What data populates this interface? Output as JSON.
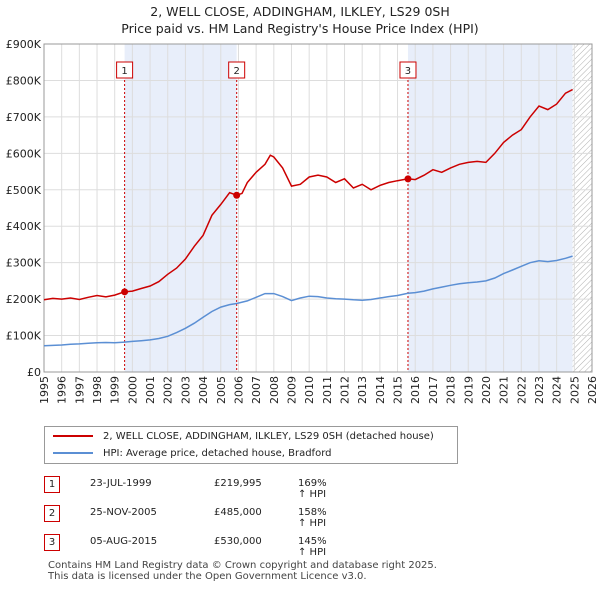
{
  "title_line1": "2, WELL CLOSE, ADDINGHAM, ILKLEY, LS29 0SH",
  "title_line2": "Price paid vs. HM Land Registry's House Price Index (HPI)",
  "chart_data": {
    "type": "line",
    "title": "2, WELL CLOSE, ADDINGHAM, ILKLEY, LS29 0SH — Price paid vs. HM Land Registry's House Price Index (HPI)",
    "xlim": [
      1995,
      2026
    ],
    "ylim": [
      0,
      900000
    ],
    "x_ticks": [
      "1995",
      "1996",
      "1997",
      "1998",
      "1999",
      "2000",
      "2001",
      "2002",
      "2003",
      "2004",
      "2005",
      "2006",
      "2007",
      "2008",
      "2009",
      "2010",
      "2011",
      "2012",
      "2013",
      "2014",
      "2015",
      "2016",
      "2017",
      "2018",
      "2019",
      "2020",
      "2021",
      "2022",
      "2023",
      "2024",
      "2025",
      "2026"
    ],
    "y_ticks": [
      {
        "value": 0,
        "label": "£0"
      },
      {
        "value": 100000,
        "label": "£100K"
      },
      {
        "value": 200000,
        "label": "£200K"
      },
      {
        "value": 300000,
        "label": "£300K"
      },
      {
        "value": 400000,
        "label": "£400K"
      },
      {
        "value": 500000,
        "label": "£500K"
      },
      {
        "value": 600000,
        "label": "£600K"
      },
      {
        "value": 700000,
        "label": "£700K"
      },
      {
        "value": 800000,
        "label": "£800K"
      },
      {
        "value": 900000,
        "label": "£900K"
      }
    ],
    "shaded_periods": [
      [
        1999.56,
        2005.9
      ],
      [
        2015.59,
        2024.9
      ]
    ],
    "hatched_after": 2024.9,
    "series": [
      {
        "name": "2, WELL CLOSE, ADDINGHAM, ILKLEY, LS29 0SH (detached house)",
        "color": "#cc0000",
        "points": [
          [
            1995.0,
            198000
          ],
          [
            1995.5,
            202000
          ],
          [
            1996.0,
            200000
          ],
          [
            1996.5,
            203000
          ],
          [
            1997.0,
            199000
          ],
          [
            1997.5,
            205000
          ],
          [
            1998.0,
            210000
          ],
          [
            1998.5,
            206000
          ],
          [
            1999.0,
            211000
          ],
          [
            1999.56,
            219995
          ],
          [
            2000.0,
            222000
          ],
          [
            2000.5,
            229000
          ],
          [
            2001.0,
            236000
          ],
          [
            2001.5,
            248000
          ],
          [
            2002.0,
            268000
          ],
          [
            2002.5,
            285000
          ],
          [
            2003.0,
            310000
          ],
          [
            2003.5,
            345000
          ],
          [
            2004.0,
            375000
          ],
          [
            2004.5,
            430000
          ],
          [
            2005.0,
            460000
          ],
          [
            2005.5,
            492000
          ],
          [
            2005.9,
            485000
          ],
          [
            2006.2,
            490000
          ],
          [
            2006.5,
            520000
          ],
          [
            2007.0,
            548000
          ],
          [
            2007.5,
            570000
          ],
          [
            2007.8,
            595000
          ],
          [
            2008.0,
            590000
          ],
          [
            2008.5,
            560000
          ],
          [
            2009.0,
            510000
          ],
          [
            2009.5,
            515000
          ],
          [
            2010.0,
            535000
          ],
          [
            2010.5,
            540000
          ],
          [
            2011.0,
            535000
          ],
          [
            2011.5,
            520000
          ],
          [
            2012.0,
            530000
          ],
          [
            2012.5,
            505000
          ],
          [
            2013.0,
            515000
          ],
          [
            2013.5,
            500000
          ],
          [
            2014.0,
            512000
          ],
          [
            2014.5,
            520000
          ],
          [
            2015.0,
            525000
          ],
          [
            2015.59,
            530000
          ],
          [
            2016.0,
            528000
          ],
          [
            2016.5,
            540000
          ],
          [
            2017.0,
            555000
          ],
          [
            2017.5,
            548000
          ],
          [
            2018.0,
            560000
          ],
          [
            2018.5,
            570000
          ],
          [
            2019.0,
            575000
          ],
          [
            2019.5,
            578000
          ],
          [
            2020.0,
            575000
          ],
          [
            2020.5,
            600000
          ],
          [
            2021.0,
            630000
          ],
          [
            2021.5,
            650000
          ],
          [
            2022.0,
            665000
          ],
          [
            2022.5,
            700000
          ],
          [
            2023.0,
            730000
          ],
          [
            2023.5,
            720000
          ],
          [
            2024.0,
            735000
          ],
          [
            2024.5,
            765000
          ],
          [
            2024.9,
            775000
          ]
        ]
      },
      {
        "name": "HPI: Average price, detached house, Bradford",
        "color": "#5b8fd4",
        "points": [
          [
            1995.0,
            72000
          ],
          [
            1995.5,
            73000
          ],
          [
            1996.0,
            74000
          ],
          [
            1996.5,
            76000
          ],
          [
            1997.0,
            77000
          ],
          [
            1997.5,
            79000
          ],
          [
            1998.0,
            80000
          ],
          [
            1998.5,
            81000
          ],
          [
            1999.0,
            80000
          ],
          [
            1999.56,
            82000
          ],
          [
            2000.0,
            84000
          ],
          [
            2000.5,
            86000
          ],
          [
            2001.0,
            88000
          ],
          [
            2001.5,
            92000
          ],
          [
            2002.0,
            98000
          ],
          [
            2002.5,
            108000
          ],
          [
            2003.0,
            120000
          ],
          [
            2003.5,
            134000
          ],
          [
            2004.0,
            150000
          ],
          [
            2004.5,
            166000
          ],
          [
            2005.0,
            178000
          ],
          [
            2005.5,
            185000
          ],
          [
            2005.9,
            188000
          ],
          [
            2006.5,
            195000
          ],
          [
            2007.0,
            205000
          ],
          [
            2007.5,
            215000
          ],
          [
            2008.0,
            215000
          ],
          [
            2008.5,
            207000
          ],
          [
            2009.0,
            196000
          ],
          [
            2009.5,
            203000
          ],
          [
            2010.0,
            208000
          ],
          [
            2010.5,
            207000
          ],
          [
            2011.0,
            203000
          ],
          [
            2011.5,
            201000
          ],
          [
            2012.0,
            200000
          ],
          [
            2012.5,
            198000
          ],
          [
            2013.0,
            197000
          ],
          [
            2013.5,
            199000
          ],
          [
            2014.0,
            203000
          ],
          [
            2014.5,
            207000
          ],
          [
            2015.0,
            210000
          ],
          [
            2015.59,
            216000
          ],
          [
            2016.0,
            218000
          ],
          [
            2016.5,
            222000
          ],
          [
            2017.0,
            228000
          ],
          [
            2017.5,
            233000
          ],
          [
            2018.0,
            238000
          ],
          [
            2018.5,
            242000
          ],
          [
            2019.0,
            245000
          ],
          [
            2019.5,
            247000
          ],
          [
            2020.0,
            250000
          ],
          [
            2020.5,
            258000
          ],
          [
            2021.0,
            270000
          ],
          [
            2021.5,
            280000
          ],
          [
            2022.0,
            290000
          ],
          [
            2022.5,
            300000
          ],
          [
            2023.0,
            305000
          ],
          [
            2023.5,
            303000
          ],
          [
            2024.0,
            306000
          ],
          [
            2024.5,
            312000
          ],
          [
            2024.9,
            318000
          ]
        ]
      }
    ],
    "markers": [
      {
        "label": "1",
        "x": 1999.56,
        "y": 219995
      },
      {
        "label": "2",
        "x": 2005.9,
        "y": 485000
      },
      {
        "label": "3",
        "x": 2015.59,
        "y": 530000
      }
    ]
  },
  "legend": {
    "property_label": "2, WELL CLOSE, ADDINGHAM, ILKLEY, LS29 0SH (detached house)",
    "property_color": "#cc0000",
    "hpi_label": "HPI: Average price, detached house, Bradford",
    "hpi_color": "#5b8fd4"
  },
  "sales": [
    {
      "num": "1",
      "date": "23-JUL-1999",
      "price": "£219,995",
      "hpi": "169% ↑ HPI"
    },
    {
      "num": "2",
      "date": "25-NOV-2005",
      "price": "£485,000",
      "hpi": "158% ↑ HPI"
    },
    {
      "num": "3",
      "date": "05-AUG-2015",
      "price": "£530,000",
      "hpi": "145% ↑ HPI"
    }
  ],
  "footer_line1": "Contains HM Land Registry data © Crown copyright and database right 2025.",
  "footer_line2": "This data is licensed under the Open Government Licence v3.0."
}
